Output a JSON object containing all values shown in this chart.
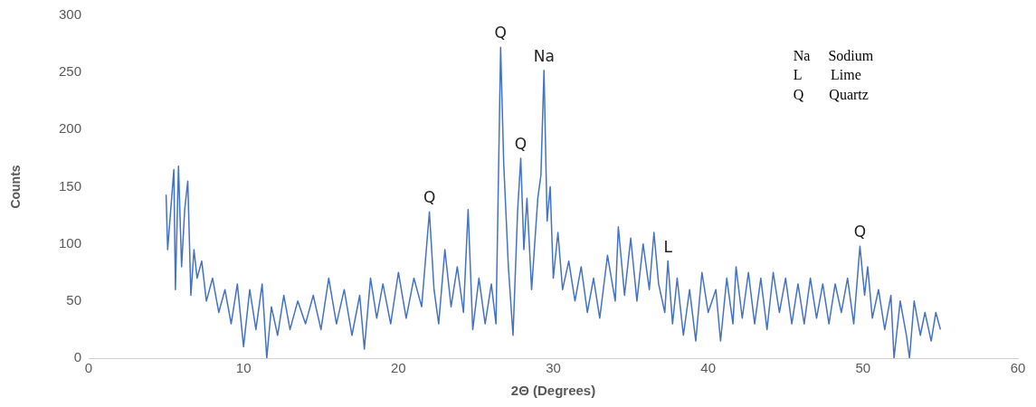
{
  "chart_data": {
    "type": "line",
    "xlabel": "2Θ (Degrees)",
    "ylabel": "Counts",
    "xlim": [
      0,
      60
    ],
    "xticks": [
      0,
      10,
      20,
      30,
      40,
      50,
      60
    ],
    "ylim": [
      0,
      300
    ],
    "yticks": [
      0,
      50,
      100,
      150,
      200,
      250,
      300
    ],
    "grid": false,
    "legend": false,
    "marker": "none",
    "line_style": "solid",
    "series": [
      {
        "color": "#4472c4",
        "x": [
          5.0,
          5.1,
          5.3,
          5.5,
          5.6,
          5.8,
          6.0,
          6.2,
          6.4,
          6.6,
          6.8,
          7.0,
          7.3,
          7.6,
          8.0,
          8.4,
          8.8,
          9.2,
          9.6,
          10.0,
          10.4,
          10.8,
          11.2,
          11.5,
          11.8,
          12.2,
          12.6,
          13.0,
          13.5,
          14.0,
          14.5,
          15.0,
          15.5,
          16.0,
          16.5,
          17.0,
          17.5,
          17.8,
          18.2,
          18.6,
          19.0,
          19.5,
          20.0,
          20.5,
          21.0,
          21.5,
          22.0,
          22.3,
          22.6,
          23.0,
          23.4,
          23.8,
          24.2,
          24.5,
          24.8,
          25.2,
          25.6,
          26.0,
          26.3,
          26.6,
          26.8,
          27.1,
          27.4,
          27.7,
          27.9,
          28.1,
          28.3,
          28.6,
          29.0,
          29.2,
          29.4,
          29.6,
          29.8,
          30.0,
          30.3,
          30.6,
          31.0,
          31.4,
          31.8,
          32.2,
          32.6,
          33.0,
          33.5,
          34.0,
          34.2,
          34.6,
          35.0,
          35.4,
          35.8,
          36.2,
          36.5,
          36.8,
          37.2,
          37.4,
          37.7,
          38.0,
          38.4,
          38.8,
          39.2,
          39.6,
          40.0,
          40.5,
          40.8,
          41.2,
          41.6,
          41.8,
          42.2,
          42.6,
          43.0,
          43.4,
          43.8,
          44.2,
          44.6,
          45.0,
          45.4,
          45.8,
          46.2,
          46.6,
          47.0,
          47.4,
          47.8,
          48.2,
          48.6,
          49.0,
          49.4,
          49.8,
          50.1,
          50.3,
          50.6,
          51.0,
          51.4,
          51.8,
          52.0,
          52.4,
          52.8,
          53.0,
          53.3,
          53.7,
          54.0,
          54.4,
          54.7,
          55.0
        ],
        "values": [
          143,
          95,
          130,
          165,
          60,
          168,
          80,
          130,
          155,
          55,
          95,
          70,
          85,
          50,
          70,
          40,
          60,
          30,
          65,
          10,
          60,
          25,
          65,
          0,
          45,
          20,
          55,
          25,
          50,
          30,
          55,
          25,
          70,
          30,
          60,
          20,
          55,
          8,
          70,
          35,
          65,
          30,
          75,
          35,
          70,
          45,
          128,
          60,
          30,
          95,
          45,
          80,
          40,
          130,
          25,
          70,
          30,
          65,
          30,
          272,
          170,
          80,
          20,
          130,
          175,
          95,
          140,
          60,
          140,
          160,
          252,
          120,
          150,
          70,
          110,
          60,
          85,
          50,
          80,
          40,
          70,
          35,
          90,
          50,
          115,
          55,
          105,
          50,
          100,
          60,
          110,
          65,
          40,
          85,
          30,
          70,
          20,
          60,
          15,
          75,
          40,
          60,
          15,
          70,
          30,
          80,
          35,
          75,
          30,
          70,
          25,
          75,
          40,
          70,
          30,
          65,
          30,
          70,
          35,
          65,
          30,
          65,
          40,
          70,
          30,
          98,
          55,
          80,
          35,
          60,
          25,
          55,
          0,
          50,
          20,
          0,
          50,
          20,
          40,
          15,
          40,
          25
        ]
      }
    ],
    "annotations": [
      {
        "text": "Q",
        "x": 22,
        "y": 128
      },
      {
        "text": "Q",
        "x": 26.6,
        "y": 272
      },
      {
        "text": "Q",
        "x": 27.9,
        "y": 175
      },
      {
        "text": "Na",
        "x": 29.4,
        "y": 252
      },
      {
        "text": "L",
        "x": 37.4,
        "y": 85
      },
      {
        "text": "Q",
        "x": 49.8,
        "y": 98
      },
      "Na     Sodium",
      "L        Lime",
      "Q       Quartz"
    ]
  }
}
